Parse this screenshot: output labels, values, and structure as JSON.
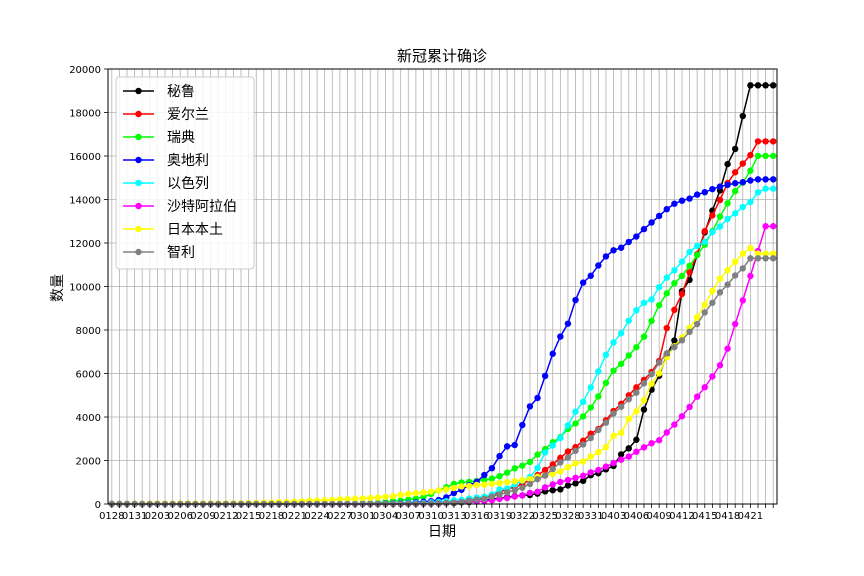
{
  "chart_data": {
    "type": "line",
    "title": "新冠累计确诊",
    "xlabel": "日期",
    "ylabel": "数量",
    "ylim": [
      0,
      20000
    ],
    "yticks": [
      0,
      2000,
      4000,
      6000,
      8000,
      10000,
      12000,
      14000,
      16000,
      18000,
      20000
    ],
    "grid": true,
    "legend_position": "top-left",
    "x": [
      "0128",
      "0129",
      "0130",
      "0131",
      "0201",
      "0202",
      "0203",
      "0204",
      "0205",
      "0206",
      "0207",
      "0208",
      "0209",
      "0210",
      "0211",
      "0212",
      "0213",
      "0214",
      "0215",
      "0216",
      "0217",
      "0218",
      "0219",
      "0220",
      "0221",
      "0222",
      "0223",
      "0224",
      "0225",
      "0226",
      "0227",
      "0228",
      "0229",
      "0301",
      "0302",
      "0303",
      "0304",
      "0305",
      "0306",
      "0307",
      "0308",
      "0309",
      "0310",
      "0311",
      "0312",
      "0313",
      "0314",
      "0315",
      "0316",
      "0317",
      "0318",
      "0319",
      "0320",
      "0321",
      "0322",
      "0323",
      "0324",
      "0325",
      "0326",
      "0327",
      "0328",
      "0329",
      "0330",
      "0331",
      "0401",
      "0402",
      "0403",
      "0404",
      "0405",
      "0406",
      "0407",
      "0408",
      "0409",
      "0410",
      "0411",
      "0412",
      "0413",
      "0414",
      "0415",
      "0416",
      "0417",
      "0418",
      "0419",
      "0420",
      "0421",
      "0422",
      "0423",
      "0424"
    ],
    "xticks": [
      "0128",
      "0131",
      "0203",
      "0206",
      "0209",
      "0212",
      "0215",
      "0218",
      "0221",
      "0224",
      "0227",
      "0301",
      "0304",
      "0307",
      "0310",
      "0313",
      "0316",
      "0319",
      "0322",
      "0325",
      "0328",
      "0331",
      "0403",
      "0406",
      "0409",
      "0412",
      "0415",
      "0418",
      "0421"
    ],
    "series": [
      {
        "name": "秘鲁",
        "color": "#000000",
        "values": [
          0,
          0,
          0,
          0,
          0,
          0,
          0,
          0,
          0,
          0,
          0,
          0,
          0,
          0,
          0,
          0,
          0,
          0,
          0,
          0,
          0,
          0,
          0,
          0,
          0,
          0,
          0,
          0,
          0,
          0,
          0,
          0,
          0,
          0,
          0,
          0,
          0,
          1,
          1,
          6,
          9,
          11,
          17,
          22,
          38,
          43,
          71,
          86,
          117,
          145,
          234,
          263,
          318,
          363,
          395,
          416,
          480,
          580,
          635,
          671,
          852,
          950,
          1065,
          1323,
          1414,
          1595,
          1746,
          2281,
          2561,
          2954,
          4342,
          5256,
          5897,
          6848,
          7519,
          9784,
          10303,
          11475,
          12491,
          13489,
          14420,
          15628,
          16325,
          17837,
          19250,
          19250,
          19250,
          19250
        ]
      },
      {
        "name": "爱尔兰",
        "color": "#ff0000",
        "values": [
          0,
          0,
          0,
          0,
          0,
          0,
          0,
          0,
          0,
          0,
          0,
          0,
          0,
          0,
          0,
          0,
          0,
          0,
          0,
          0,
          0,
          0,
          0,
          0,
          0,
          0,
          0,
          0,
          0,
          0,
          0,
          0,
          1,
          1,
          1,
          2,
          6,
          13,
          18,
          19,
          21,
          24,
          34,
          43,
          70,
          90,
          129,
          169,
          223,
          292,
          366,
          557,
          683,
          785,
          906,
          1125,
          1329,
          1564,
          1819,
          2121,
          2415,
          2615,
          2910,
          3235,
          3447,
          3849,
          4273,
          4604,
          4994,
          5364,
          5709,
          6074,
          6574,
          8089,
          8928,
          9655,
          10647,
          11479,
          12547,
          13271,
          13980,
          14758,
          15251,
          15652,
          16040,
          16671,
          16671,
          16671
        ]
      },
      {
        "name": "瑞典",
        "color": "#00ff00",
        "values": [
          0,
          0,
          0,
          0,
          1,
          1,
          1,
          1,
          1,
          1,
          1,
          1,
          1,
          1,
          1,
          1,
          1,
          1,
          1,
          1,
          1,
          1,
          1,
          1,
          1,
          1,
          1,
          7,
          7,
          12,
          13,
          14,
          15,
          21,
          30,
          52,
          94,
          137,
          161,
          203,
          248,
          326,
          461,
          620,
          771,
          924,
          992,
          1022,
          1059,
          1104,
          1167,
          1279,
          1439,
          1639,
          1763,
          1934,
          2272,
          2526,
          2840,
          3069,
          3447,
          3700,
          4028,
          4435,
          4947,
          5568,
          6131,
          6443,
          6830,
          7206,
          7693,
          8419,
          9141,
          9685,
          10151,
          10483,
          10948,
          11445,
          11927,
          12540,
          13216,
          13822,
          14385,
          14777,
          15322,
          16004,
          16004,
          16004
        ]
      },
      {
        "name": "奥地利",
        "color": "#0000ff",
        "values": [
          0,
          0,
          0,
          0,
          0,
          0,
          0,
          0,
          0,
          0,
          0,
          0,
          0,
          0,
          0,
          0,
          0,
          0,
          0,
          0,
          0,
          0,
          0,
          0,
          0,
          0,
          2,
          2,
          3,
          3,
          5,
          5,
          10,
          10,
          14,
          18,
          24,
          29,
          41,
          55,
          79,
          104,
          131,
          182,
          302,
          504,
          655,
          860,
          1018,
          1332,
          1646,
          2203,
          2649,
          2711,
          3631,
          4486,
          4876,
          5888,
          6909,
          7697,
          8291,
          9377,
          10180,
          10494,
          10967,
          11383,
          11665,
          11781,
          12051,
          12297,
          12639,
          12942,
          13244,
          13555,
          13806,
          13945,
          14041,
          14226,
          14336,
          14476,
          14595,
          14671,
          14749,
          14795,
          14873,
          14925,
          14925,
          14925
        ]
      },
      {
        "name": "以色列",
        "color": "#00ffff",
        "values": [
          0,
          0,
          0,
          0,
          0,
          0,
          0,
          0,
          0,
          0,
          0,
          0,
          0,
          0,
          0,
          0,
          0,
          0,
          0,
          0,
          0,
          1,
          1,
          1,
          1,
          1,
          2,
          2,
          2,
          3,
          5,
          7,
          7,
          10,
          10,
          12,
          15,
          21,
          25,
          39,
          42,
          50,
          75,
          97,
          126,
          178,
          193,
          250,
          298,
          337,
          433,
          677,
          705,
          883,
          1071,
          1238,
          1656,
          2369,
          2693,
          3035,
          3619,
          4247,
          4695,
          5358,
          6092,
          6857,
          7428,
          7851,
          8430,
          8904,
          9248,
          9404,
          9968,
          10408,
          10743,
          11145,
          11586,
          11868,
          12046,
          12501,
          12758,
          13107,
          13362,
          13654,
          13883,
          14326,
          14498,
          14498
        ]
      },
      {
        "name": "沙特阿拉伯",
        "color": "#ff00ff",
        "values": [
          0,
          0,
          0,
          0,
          0,
          0,
          0,
          0,
          0,
          0,
          0,
          0,
          0,
          0,
          0,
          0,
          0,
          0,
          0,
          0,
          0,
          0,
          0,
          0,
          0,
          0,
          0,
          0,
          0,
          0,
          0,
          0,
          0,
          0,
          1,
          1,
          1,
          5,
          5,
          5,
          11,
          15,
          20,
          21,
          45,
          62,
          86,
          103,
          118,
          133,
          171,
          238,
          274,
          344,
          392,
          511,
          562,
          767,
          900,
          1012,
          1104,
          1203,
          1299,
          1453,
          1563,
          1720,
          1885,
          2039,
          2179,
          2402,
          2605,
          2795,
          2932,
          3287,
          3651,
          4033,
          4462,
          4934,
          5369,
          5862,
          6380,
          7142,
          8274,
          9362,
          10484,
          11631,
          12772,
          12772
        ]
      },
      {
        "name": "日本本土",
        "color": "#ffff00",
        "values": [
          2,
          4,
          7,
          8,
          14,
          17,
          20,
          20,
          20,
          25,
          25,
          25,
          26,
          26,
          26,
          28,
          29,
          33,
          41,
          53,
          59,
          66,
          84,
          94,
          105,
          122,
          147,
          159,
          170,
          189,
          214,
          228,
          241,
          256,
          274,
          293,
          331,
          360,
          420,
          461,
          502,
          530,
          568,
          620,
          675,
          734,
          806,
          826,
          878,
          889,
          924,
          963,
          1007,
          1046,
          1101,
          1140,
          1254,
          1307,
          1387,
          1499,
          1693,
          1866,
          1953,
          2178,
          2384,
          2617,
          3139,
          3271,
          3906,
          4257,
          4768,
          5530,
          6005,
          6748,
          7255,
          7645,
          8100,
          8582,
          9167,
          9795,
          10361,
          10751,
          11135,
          11512,
          11772,
          11512,
          11512,
          11512
        ]
      },
      {
        "name": "智利",
        "color": "#808080",
        "values": [
          0,
          0,
          0,
          0,
          0,
          0,
          0,
          0,
          0,
          0,
          0,
          0,
          0,
          0,
          0,
          0,
          0,
          0,
          0,
          0,
          0,
          0,
          0,
          0,
          0,
          0,
          0,
          0,
          0,
          0,
          0,
          0,
          0,
          0,
          0,
          1,
          1,
          4,
          5,
          7,
          13,
          17,
          23,
          33,
          43,
          61,
          75,
          156,
          201,
          238,
          342,
          434,
          537,
          632,
          746,
          922,
          1142,
          1306,
          1610,
          1909,
          2139,
          2449,
          2738,
          3031,
          3404,
          3737,
          4161,
          4471,
          4815,
          5116,
          5546,
          5972,
          6501,
          6927,
          7213,
          7525,
          7917,
          8273,
          8807,
          9252,
          9730,
          10088,
          10507,
          10832,
          11296,
          11296,
          11296,
          11296
        ]
      }
    ]
  }
}
